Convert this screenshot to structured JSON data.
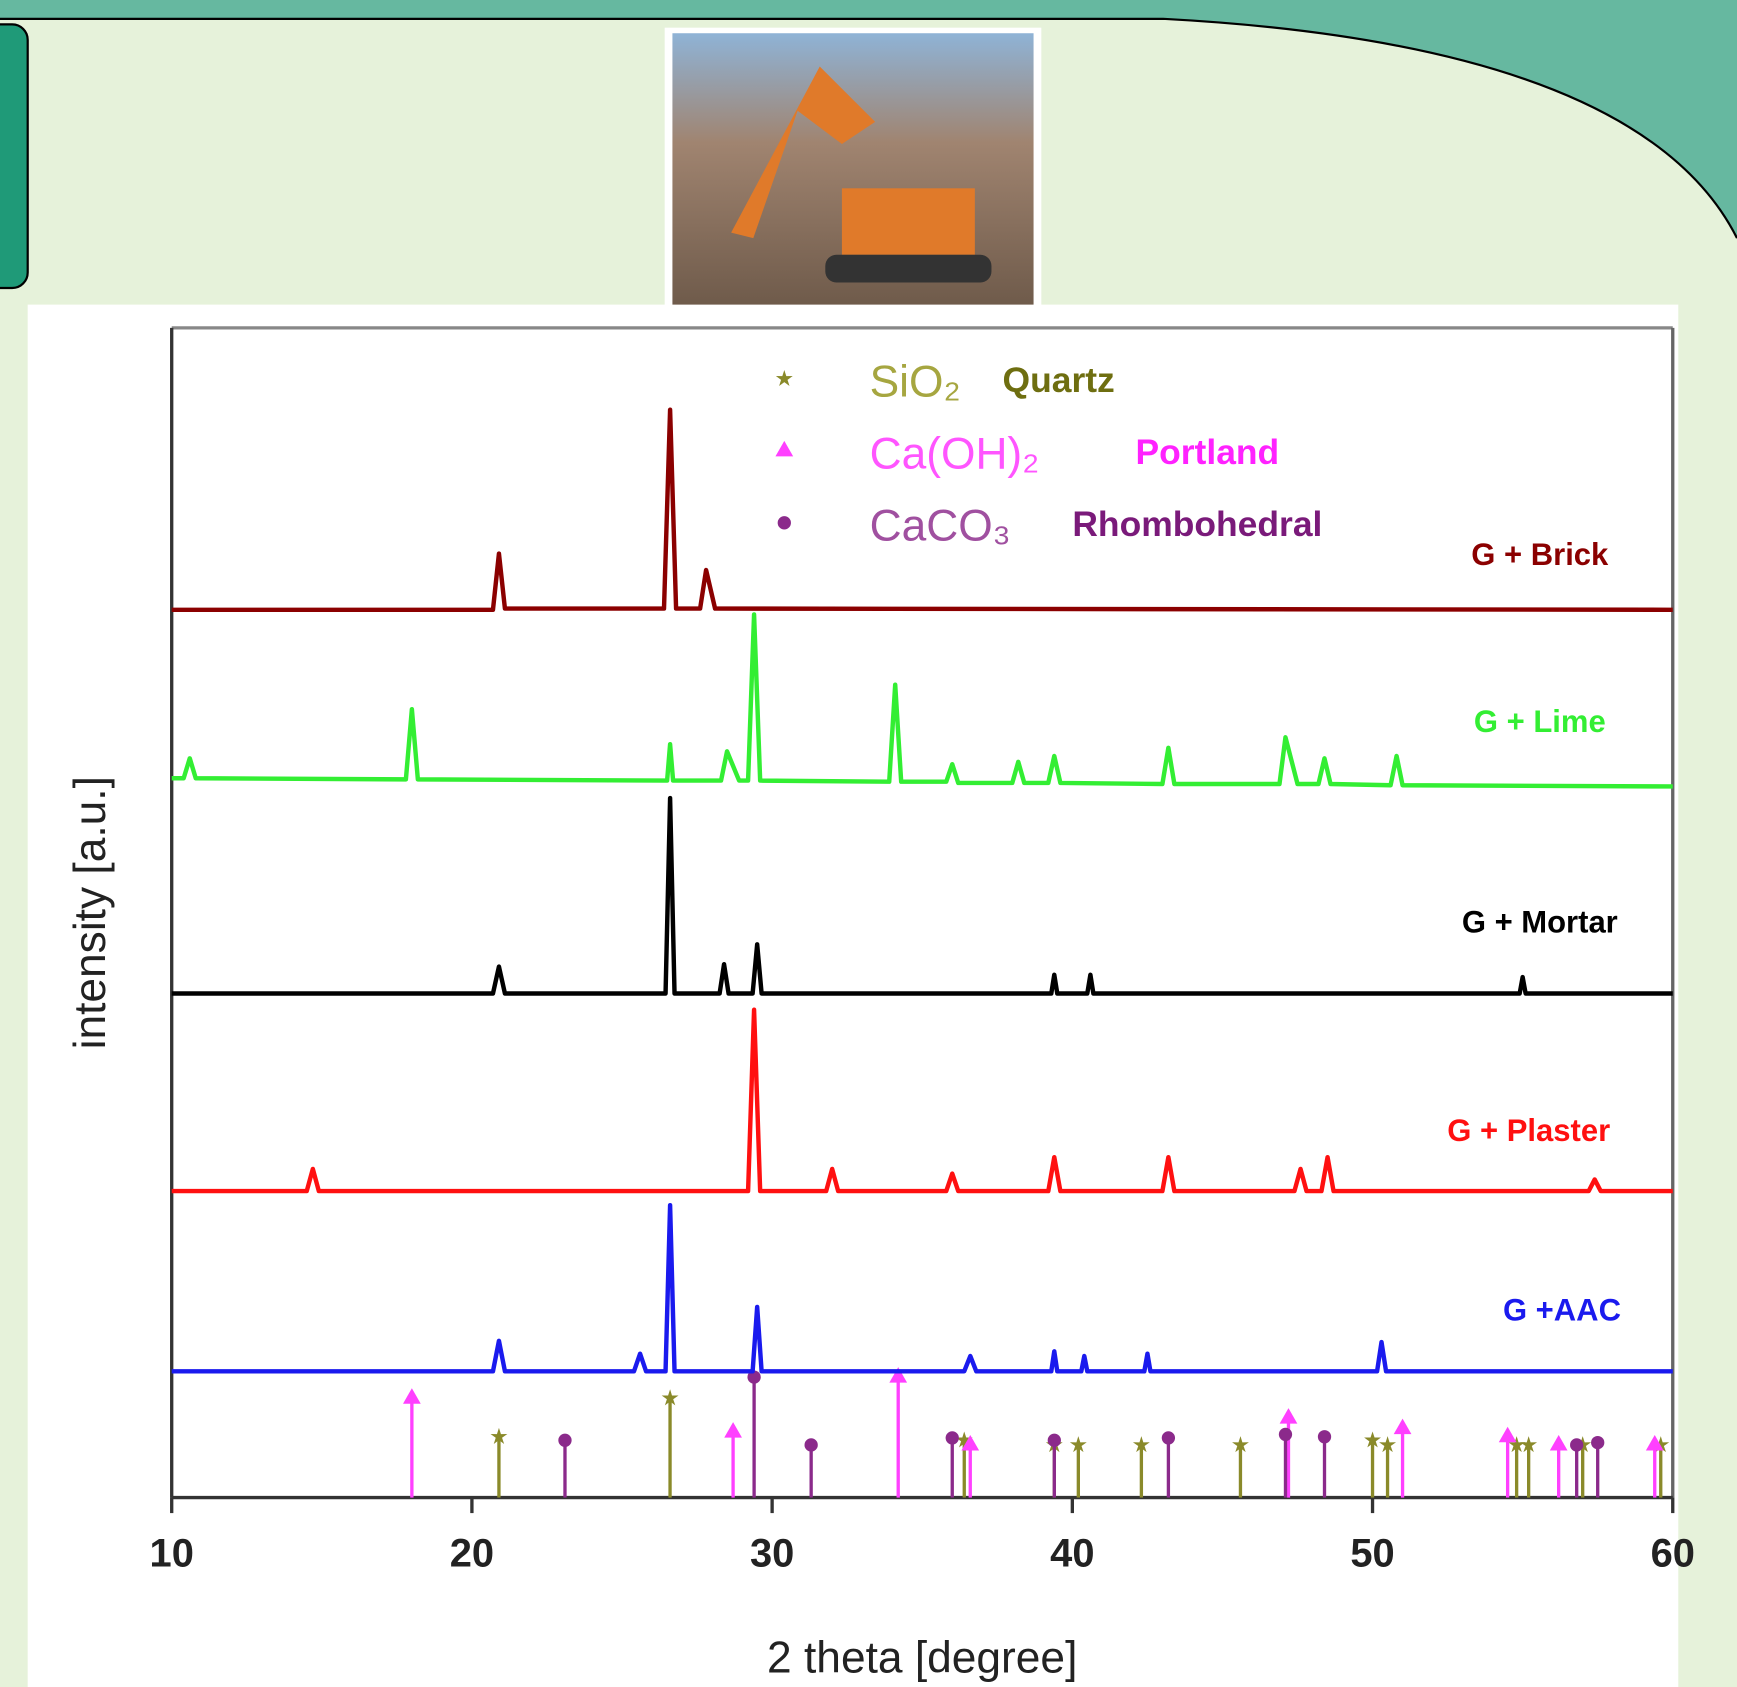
{
  "chart_data": {
    "type": "line",
    "x_label": "2 theta [degree]",
    "y_label": "intensity [a.u.]",
    "xlim": [
      10,
      60
    ],
    "xticks": [
      10,
      20,
      30,
      40,
      50,
      60
    ],
    "ylim": [
      0,
      100
    ],
    "series": [
      {
        "name": "G + Brick",
        "color": "#8b0000",
        "x": [
          10,
          20.7,
          20.9,
          21.1,
          26.4,
          26.6,
          26.8,
          27.6,
          27.8,
          28.1,
          60
        ],
        "values": [
          75.9,
          75.9,
          80.7,
          76,
          76,
          93,
          76,
          76,
          79.3,
          76,
          75.9
        ]
      },
      {
        "name": "G + Lime",
        "color": "#33ee33",
        "x": [
          10,
          10.4,
          10.6,
          10.8,
          17.8,
          18,
          18.2,
          26.5,
          26.6,
          26.7,
          28.3,
          28.5,
          28.9,
          29.2,
          29.4,
          29.6,
          33.9,
          34.1,
          34.3,
          35.8,
          36,
          36.2,
          38,
          38.2,
          38.4,
          39.2,
          39.4,
          39.6,
          43,
          43.2,
          43.4,
          46.9,
          47.1,
          47.5,
          48.2,
          48.4,
          48.6,
          50.6,
          50.8,
          51,
          60
        ],
        "values": [
          61.5,
          61.5,
          63.2,
          61.5,
          61.4,
          67.4,
          61.4,
          61.3,
          64.4,
          61.3,
          61.3,
          63.8,
          61.3,
          61.3,
          75.5,
          61.3,
          61.2,
          69.5,
          61.2,
          61.2,
          62.7,
          61.1,
          61.1,
          62.9,
          61.1,
          61.1,
          63.4,
          61.1,
          61,
          64.1,
          61,
          61,
          65,
          61,
          61,
          63.2,
          61,
          60.9,
          63.4,
          60.9,
          60.8
        ]
      },
      {
        "name": "G + Mortar",
        "color": "#000000",
        "x": [
          10,
          20.7,
          20.9,
          21.1,
          26.45,
          26.6,
          26.75,
          28.25,
          28.4,
          28.55,
          29.35,
          29.5,
          29.65,
          39.3,
          39.4,
          39.5,
          40.5,
          40.6,
          40.7,
          54.9,
          55,
          55.1,
          60
        ],
        "values": [
          43.1,
          43.1,
          45.4,
          43.1,
          43.1,
          59.8,
          43.1,
          43.1,
          45.6,
          43.1,
          43.1,
          47.3,
          43.1,
          43.1,
          44.7,
          43.1,
          43.1,
          44.7,
          43.1,
          43.1,
          44.5,
          43.1,
          43.1
        ]
      },
      {
        "name": "G + Plaster",
        "color": "#ff1010",
        "x": [
          10,
          14.5,
          14.7,
          14.9,
          29.2,
          29.4,
          29.6,
          31.8,
          32,
          32.2,
          35.8,
          36,
          36.2,
          39.2,
          39.4,
          39.6,
          43,
          43.2,
          43.4,
          47.4,
          47.6,
          47.8,
          48.3,
          48.5,
          48.7,
          57.2,
          57.4,
          57.6,
          60
        ],
        "values": [
          26.2,
          26.2,
          28.1,
          26.2,
          26.2,
          41.7,
          26.2,
          26.2,
          28.1,
          26.2,
          26.2,
          27.7,
          26.2,
          26.2,
          29.1,
          26.2,
          26.2,
          29.1,
          26.2,
          26.2,
          28.1,
          26.2,
          26.2,
          29.1,
          26.2,
          26.2,
          27.2,
          26.2,
          26.2
        ]
      },
      {
        "name": "G +AAC",
        "color": "#1a1aee",
        "x": [
          10,
          20.7,
          20.9,
          21.1,
          25.4,
          25.6,
          25.8,
          26.45,
          26.6,
          26.75,
          29.35,
          29.5,
          29.65,
          36.4,
          36.6,
          36.8,
          39.3,
          39.4,
          39.5,
          40.3,
          40.4,
          40.5,
          42.4,
          42.5,
          42.6,
          50.15,
          50.3,
          50.45,
          60
        ],
        "values": [
          10.8,
          10.8,
          13.4,
          10.8,
          10.8,
          12.3,
          10.8,
          10.8,
          25,
          10.8,
          10.8,
          16.3,
          10.8,
          10.8,
          12.1,
          10.8,
          10.8,
          12.5,
          10.8,
          10.8,
          12.1,
          10.8,
          10.8,
          12.3,
          10.8,
          10.8,
          13.3,
          10.8,
          10.8
        ]
      }
    ],
    "references": [
      {
        "name": "SiO₂",
        "phase": "Quartz",
        "color": "#8a8a2a",
        "label_color": "#a6a640",
        "phase_color": "#6e6e10",
        "marker": "star",
        "x": [
          20.9,
          26.6,
          36.4,
          39.4,
          40.2,
          42.3,
          45.6,
          50,
          50.5,
          54.8,
          55.2,
          57,
          59.6
        ],
        "values": [
          5.2,
          8.5,
          4.9,
          4.5,
          4.5,
          4.5,
          4.5,
          4.9,
          4.5,
          4.5,
          4.5,
          4.5,
          4.5
        ]
      },
      {
        "name": "Ca(OH)₂",
        "phase": "Portland",
        "color": "#ff40ff",
        "label_color": "#ff55ff",
        "phase_color": "#ff22ff",
        "marker": "triangle",
        "x": [
          18,
          28.7,
          34.2,
          36.6,
          47.2,
          51,
          54.5,
          56.2,
          59.4
        ],
        "values": [
          8.5,
          5.6,
          10.3,
          4.5,
          6.8,
          5.9,
          5.2,
          4.5,
          4.5
        ]
      },
      {
        "name": "CaCO₃",
        "phase": "Rhombohedral",
        "color": "#8b2a8b",
        "label_color": "#a050a0",
        "phase_color": "#7a1a7a",
        "marker": "circle",
        "x": [
          23.1,
          29.4,
          31.3,
          36,
          39.4,
          43.2,
          47.1,
          48.4,
          56.8,
          57.5
        ],
        "values": [
          4.9,
          10.3,
          4.5,
          5.1,
          4.9,
          5.1,
          5.4,
          5.2,
          4.5,
          4.7
        ]
      }
    ]
  }
}
